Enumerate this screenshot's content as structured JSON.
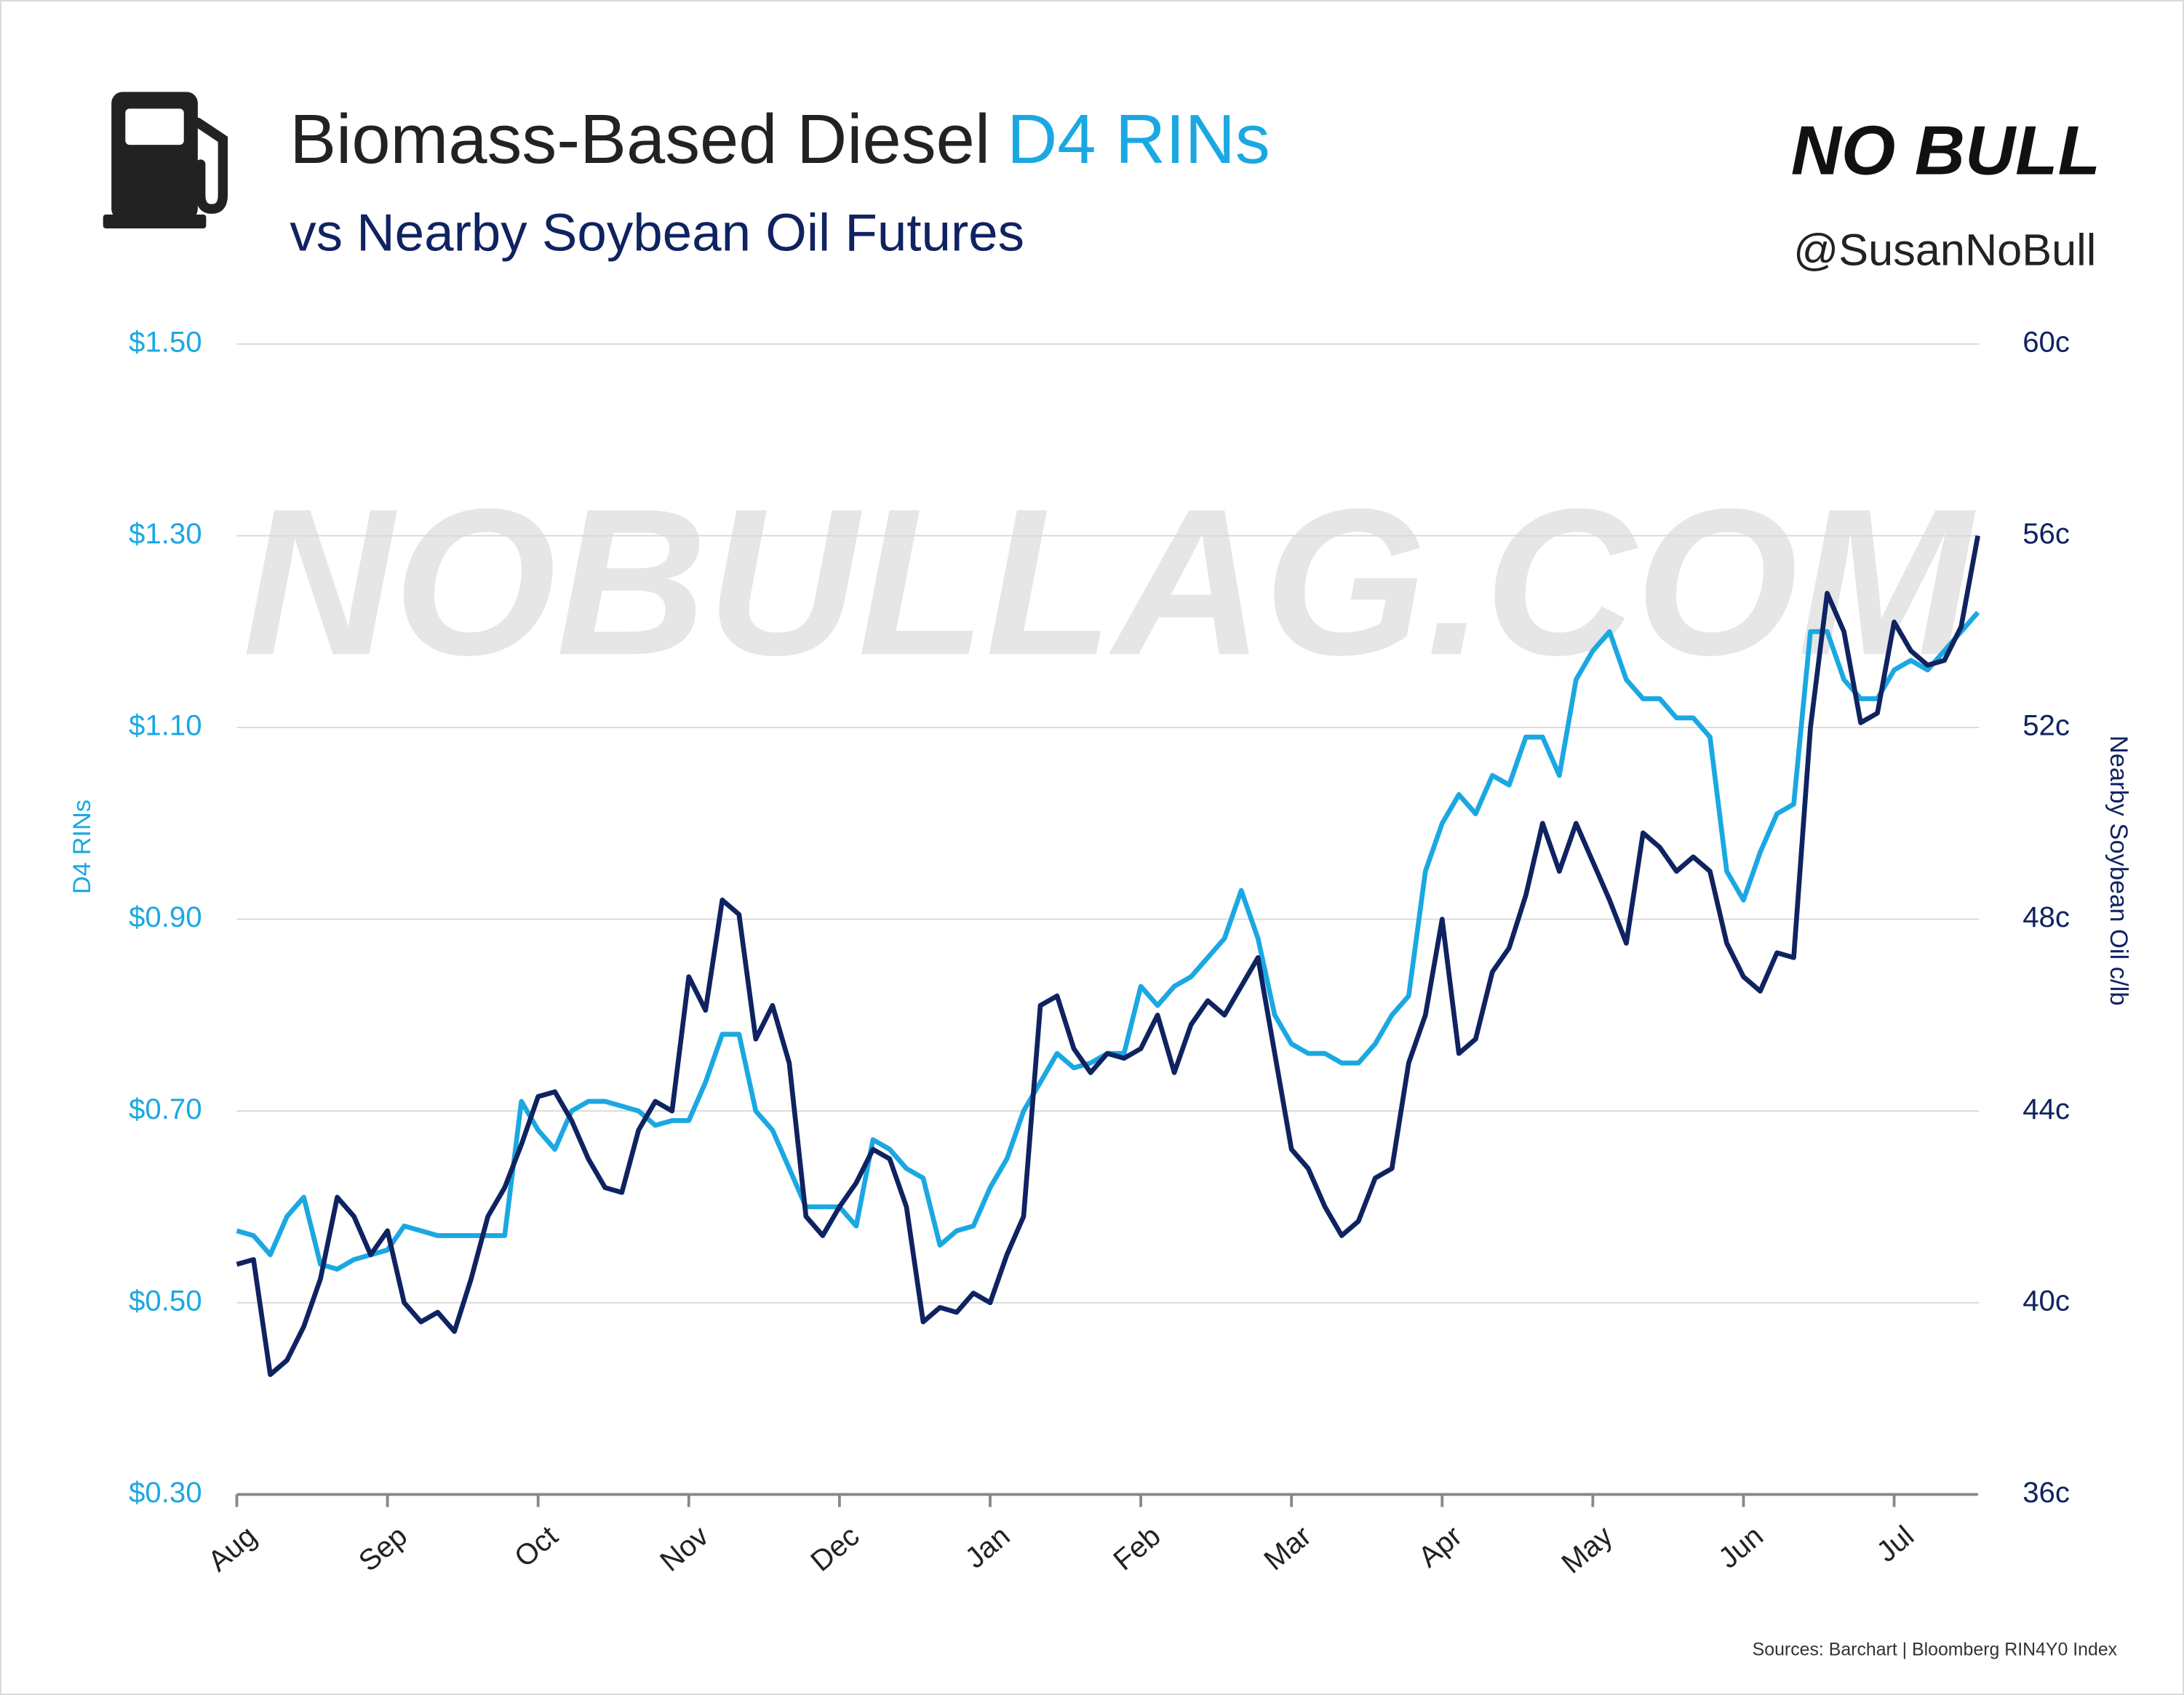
{
  "chart_data": {
    "type": "line",
    "title": "Biomass-Based Diesel",
    "title_highlight": "D4 RINs",
    "subtitle_prefix": "vs",
    "subtitle": "Nearby Soybean Oil Futures",
    "brand": "NO BULL",
    "handle": "@SusanNoBull",
    "watermark": "NOBULLAG.COM",
    "source": "Sources: Barchart | Bloomberg RIN4Y0 Index",
    "y_label": "D4 RINs",
    "y2_label": "Nearby Soybean Oil c/lb",
    "categories": [
      "Aug",
      null,
      null,
      null,
      null,
      null,
      null,
      null,
      null,
      "Sep",
      null,
      null,
      null,
      null,
      null,
      null,
      null,
      null,
      "Oct",
      null,
      null,
      null,
      null,
      null,
      null,
      null,
      null,
      "Nov",
      null,
      null,
      null,
      null,
      null,
      null,
      null,
      null,
      "Dec",
      null,
      null,
      null,
      null,
      null,
      null,
      null,
      null,
      "Jan",
      null,
      null,
      null,
      null,
      null,
      null,
      null,
      null,
      "Feb",
      null,
      null,
      null,
      null,
      null,
      null,
      null,
      null,
      "Mar",
      null,
      null,
      null,
      null,
      null,
      null,
      null,
      null,
      "Apr",
      null,
      null,
      null,
      null,
      null,
      null,
      null,
      null,
      "May",
      null,
      null,
      null,
      null,
      null,
      null,
      null,
      null,
      "Jun",
      null,
      null,
      null,
      null,
      null,
      null,
      null,
      null,
      "Jul",
      null,
      null,
      null,
      null,
      null
    ],
    "series": [
      {
        "name": "D4 RINs",
        "color": "#1ba8e2",
        "axis": "y",
        "values": [
          0.575,
          0.57,
          0.55,
          0.59,
          0.61,
          0.54,
          0.535,
          0.545,
          0.55,
          0.555,
          0.58,
          0.575,
          0.57,
          0.57,
          0.57,
          0.57,
          0.57,
          0.71,
          0.68,
          0.66,
          0.7,
          0.71,
          0.71,
          0.705,
          0.7,
          0.685,
          0.69,
          0.69,
          0.73,
          0.78,
          0.78,
          0.7,
          0.68,
          0.64,
          0.6,
          0.6,
          0.6,
          0.58,
          0.67,
          0.66,
          0.64,
          0.63,
          0.56,
          0.575,
          0.58,
          0.62,
          0.65,
          0.7,
          0.73,
          0.76,
          0.745,
          0.75,
          0.76,
          0.76,
          0.83,
          0.81,
          0.83,
          0.84,
          0.86,
          0.88,
          0.93,
          0.88,
          0.8,
          0.77,
          0.76,
          0.76,
          0.75,
          0.75,
          0.77,
          0.8,
          0.82,
          0.95,
          1.0,
          1.03,
          1.01,
          1.05,
          1.04,
          1.09,
          1.09,
          1.05,
          1.15,
          1.18,
          1.2,
          1.15,
          1.13,
          1.13,
          1.11,
          1.11,
          1.09,
          0.95,
          0.92,
          0.97,
          1.01,
          1.02,
          1.2,
          1.2,
          1.15,
          1.13,
          1.13,
          1.16,
          1.17,
          1.16,
          1.18,
          1.2,
          1.22
        ]
      },
      {
        "name": "Nearby Soybean Oil Futures",
        "color": "#0f2361",
        "axis": "y2",
        "values": [
          40.8,
          40.9,
          38.5,
          38.8,
          39.5,
          40.5,
          42.2,
          41.8,
          41.0,
          41.5,
          40.0,
          39.6,
          39.8,
          39.4,
          40.5,
          41.8,
          42.4,
          43.3,
          44.3,
          44.4,
          43.8,
          43.0,
          42.4,
          42.3,
          43.6,
          44.2,
          44.0,
          46.8,
          46.1,
          48.4,
          48.1,
          45.5,
          46.2,
          45.0,
          41.8,
          41.4,
          42.0,
          42.5,
          43.2,
          43.0,
          42.0,
          39.6,
          39.9,
          39.8,
          40.2,
          40.0,
          41.0,
          41.8,
          46.2,
          46.4,
          45.3,
          44.8,
          45.2,
          45.1,
          45.3,
          46.0,
          44.8,
          45.8,
          46.3,
          46.0,
          46.6,
          47.2,
          45.2,
          43.2,
          42.8,
          42.0,
          41.4,
          41.7,
          42.6,
          42.8,
          45.0,
          46.0,
          48.0,
          45.2,
          45.5,
          46.9,
          47.4,
          48.5,
          50.0,
          49.0,
          50.0,
          49.2,
          48.4,
          47.5,
          49.8,
          49.5,
          49.0,
          49.3,
          49.0,
          47.5,
          46.8,
          46.5,
          47.3,
          47.2,
          52.0,
          54.8,
          54.0,
          52.1,
          52.3,
          54.2,
          53.6,
          53.3,
          53.4,
          54.1,
          56.0
        ]
      }
    ],
    "ylim": [
      0.3,
      1.5
    ],
    "yticks": [
      {
        "value": 0.3,
        "label": "$0.30"
      },
      {
        "value": 0.5,
        "label": "$0.50"
      },
      {
        "value": 0.7,
        "label": "$0.70"
      },
      {
        "value": 0.9,
        "label": "$0.90"
      },
      {
        "value": 1.1,
        "label": "$1.10"
      },
      {
        "value": 1.3,
        "label": "$1.30"
      },
      {
        "value": 1.5,
        "label": "$1.50"
      }
    ],
    "y2lim": [
      36,
      60
    ],
    "y2ticks": [
      {
        "value": 36,
        "label": "36c"
      },
      {
        "value": 40,
        "label": "40c"
      },
      {
        "value": 44,
        "label": "44c"
      },
      {
        "value": 48,
        "label": "48c"
      },
      {
        "value": 52,
        "label": "52c"
      },
      {
        "value": 56,
        "label": "56c"
      },
      {
        "value": 60,
        "label": "60c"
      }
    ],
    "grid": true
  }
}
